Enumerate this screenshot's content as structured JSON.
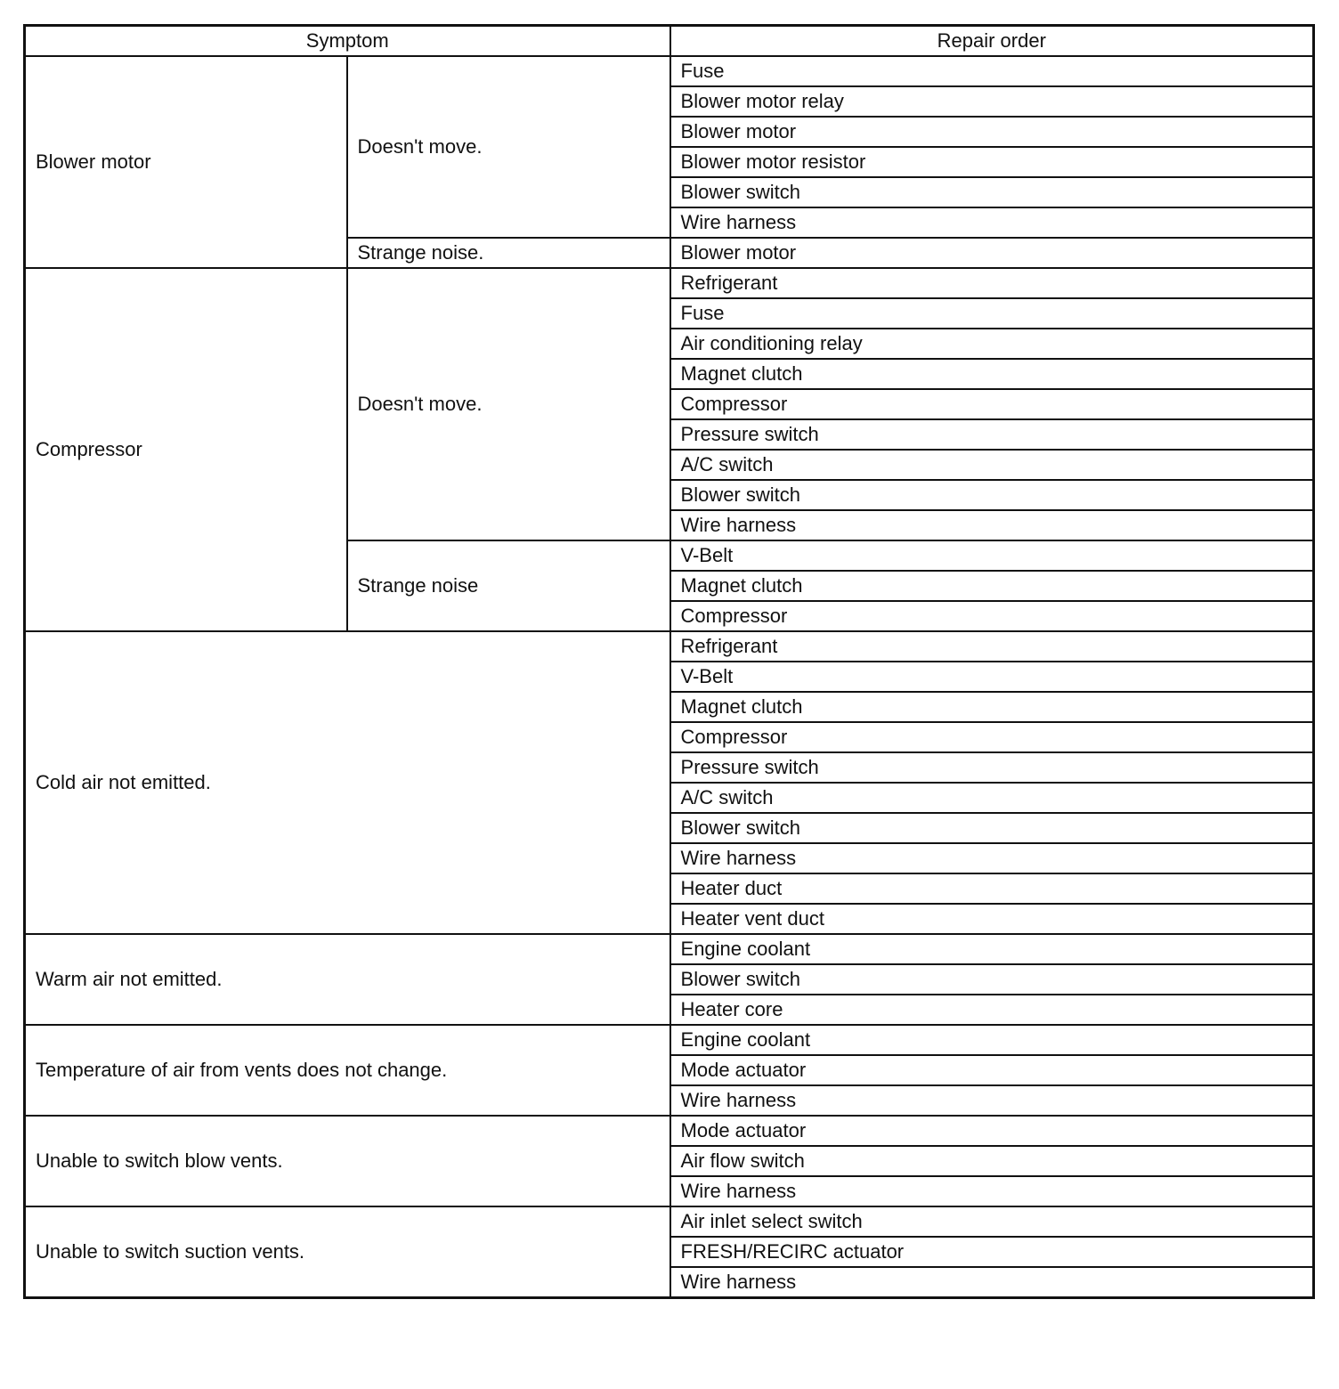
{
  "header": {
    "symptom": "Symptom",
    "repair_order": "Repair order"
  },
  "groups": [
    {
      "symptom": "Blower motor",
      "subs": [
        {
          "label": "Doesn't move.",
          "repairs": [
            "Fuse",
            "Blower motor relay",
            "Blower motor",
            "Blower motor resistor",
            "Blower switch",
            "Wire harness"
          ]
        },
        {
          "label": "Strange noise.",
          "repairs": [
            "Blower motor"
          ]
        }
      ]
    },
    {
      "symptom": "Compressor",
      "subs": [
        {
          "label": "Doesn't move.",
          "repairs": [
            "Refrigerant",
            "Fuse",
            "Air conditioning relay",
            "Magnet clutch",
            "Compressor",
            "Pressure switch",
            "A/C switch",
            "Blower switch",
            "Wire harness"
          ]
        },
        {
          "label": "Strange noise",
          "repairs": [
            "V-Belt",
            "Magnet clutch",
            "Compressor"
          ]
        }
      ]
    },
    {
      "symptom": "Cold air not emitted.",
      "repairs": [
        "Refrigerant",
        "V-Belt",
        "Magnet clutch",
        "Compressor",
        "Pressure switch",
        "A/C switch",
        "Blower switch",
        "Wire harness",
        "Heater duct",
        "Heater vent duct"
      ]
    },
    {
      "symptom": "Warm air not emitted.",
      "repairs": [
        "Engine coolant",
        "Blower switch",
        "Heater core"
      ]
    },
    {
      "symptom": "Temperature of air from vents does not change.",
      "repairs": [
        "Engine coolant",
        "Mode actuator",
        "Wire harness"
      ]
    },
    {
      "symptom": "Unable to switch blow vents.",
      "repairs": [
        "Mode actuator",
        "Air flow switch",
        "Wire harness"
      ]
    },
    {
      "symptom": "Unable to switch suction vents.",
      "repairs": [
        "Air inlet select switch",
        "FRESH/RECIRC actuator",
        "Wire harness"
      ]
    }
  ]
}
